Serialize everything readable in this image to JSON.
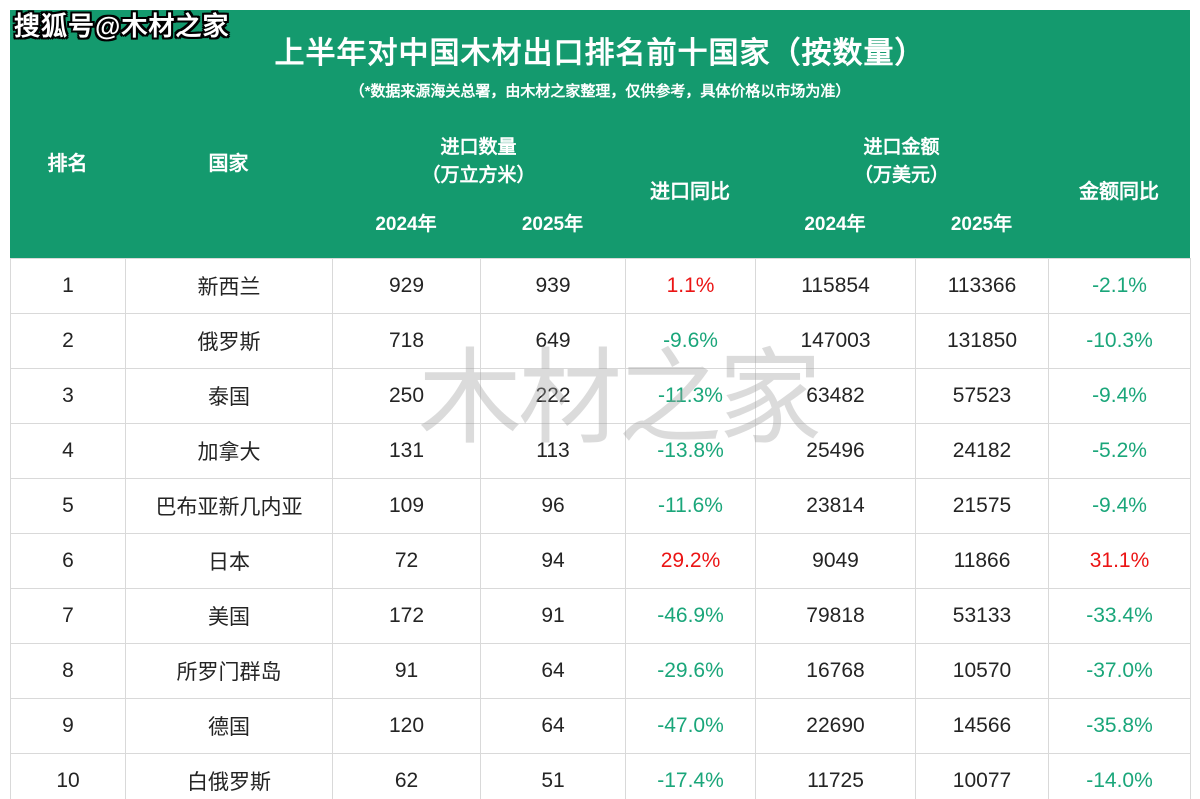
{
  "watermarks": {
    "top_left": "搜狐号@木材之家",
    "center": "木材之家"
  },
  "colors": {
    "header_green": "#149a6e",
    "negative_green": "#1aa67a",
    "positive_red": "#eb1414",
    "gridline": "#d9d9d9"
  },
  "chart_data": {
    "type": "table",
    "title": "上半年对中国木材出口排名前十国家（按数量）",
    "subtitle": "（*数据来源海关总署，由木材之家整理，仅供参考，具体价格以市场为准）",
    "headers": {
      "rank": "排名",
      "country": "国家",
      "qty_group_title": "进口数量",
      "qty_group_unit": "（万立方米）",
      "qty_yoy": "进口同比",
      "amt_group_title": "进口金额",
      "amt_group_unit": "（万美元）",
      "amt_yoy": "金额同比",
      "year_2024": "2024年",
      "year_2025": "2025年"
    },
    "rows": [
      {
        "rank": "1",
        "country": "新西兰",
        "qty_2024": "929",
        "qty_2025": "939",
        "qty_yoy": "1.1%",
        "amt_2024": "115854",
        "amt_2025": "113366",
        "amt_yoy": "-2.1%"
      },
      {
        "rank": "2",
        "country": "俄罗斯",
        "qty_2024": "718",
        "qty_2025": "649",
        "qty_yoy": "-9.6%",
        "amt_2024": "147003",
        "amt_2025": "131850",
        "amt_yoy": "-10.3%"
      },
      {
        "rank": "3",
        "country": "泰国",
        "qty_2024": "250",
        "qty_2025": "222",
        "qty_yoy": "-11.3%",
        "amt_2024": "63482",
        "amt_2025": "57523",
        "amt_yoy": "-9.4%"
      },
      {
        "rank": "4",
        "country": "加拿大",
        "qty_2024": "131",
        "qty_2025": "113",
        "qty_yoy": "-13.8%",
        "amt_2024": "25496",
        "amt_2025": "24182",
        "amt_yoy": "-5.2%"
      },
      {
        "rank": "5",
        "country": "巴布亚新几内亚",
        "qty_2024": "109",
        "qty_2025": "96",
        "qty_yoy": "-11.6%",
        "amt_2024": "23814",
        "amt_2025": "21575",
        "amt_yoy": "-9.4%"
      },
      {
        "rank": "6",
        "country": "日本",
        "qty_2024": "72",
        "qty_2025": "94",
        "qty_yoy": "29.2%",
        "amt_2024": "9049",
        "amt_2025": "11866",
        "amt_yoy": "31.1%"
      },
      {
        "rank": "7",
        "country": "美国",
        "qty_2024": "172",
        "qty_2025": "91",
        "qty_yoy": "-46.9%",
        "amt_2024": "79818",
        "amt_2025": "53133",
        "amt_yoy": "-33.4%"
      },
      {
        "rank": "8",
        "country": "所罗门群岛",
        "qty_2024": "91",
        "qty_2025": "64",
        "qty_yoy": "-29.6%",
        "amt_2024": "16768",
        "amt_2025": "10570",
        "amt_yoy": "-37.0%"
      },
      {
        "rank": "9",
        "country": "德国",
        "qty_2024": "120",
        "qty_2025": "64",
        "qty_yoy": "-47.0%",
        "amt_2024": "22690",
        "amt_2025": "14566",
        "amt_yoy": "-35.8%"
      },
      {
        "rank": "10",
        "country": "白俄罗斯",
        "qty_2024": "62",
        "qty_2025": "51",
        "qty_yoy": "-17.4%",
        "amt_2024": "11725",
        "amt_2025": "10077",
        "amt_yoy": "-14.0%"
      }
    ]
  }
}
